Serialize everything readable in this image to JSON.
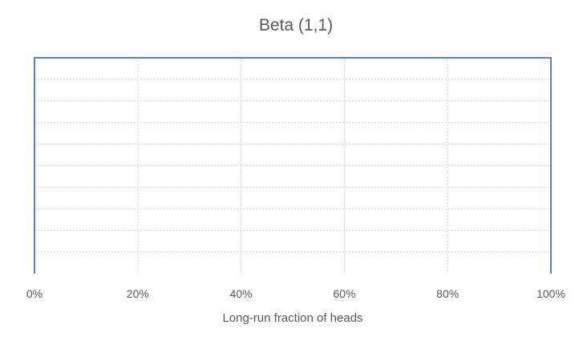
{
  "chart_data": {
    "type": "line",
    "title": "Beta (1,1)",
    "xlabel": "Long-run fraction of heads",
    "ylabel": "",
    "x_tick_labels": [
      "0%",
      "20%",
      "40%",
      "60%",
      "80%",
      "100%"
    ],
    "x_ticks": [
      0,
      0.2,
      0.4,
      0.6,
      0.8,
      1.0
    ],
    "xlim": [
      0,
      1
    ],
    "ylim": [
      0,
      1
    ],
    "y_grid_count": 10,
    "grid": true,
    "legend": "none",
    "series": [
      {
        "x": [
          0,
          0,
          1,
          1
        ],
        "y": [
          0,
          1,
          1,
          0
        ],
        "color": "#4472c4"
      }
    ]
  }
}
